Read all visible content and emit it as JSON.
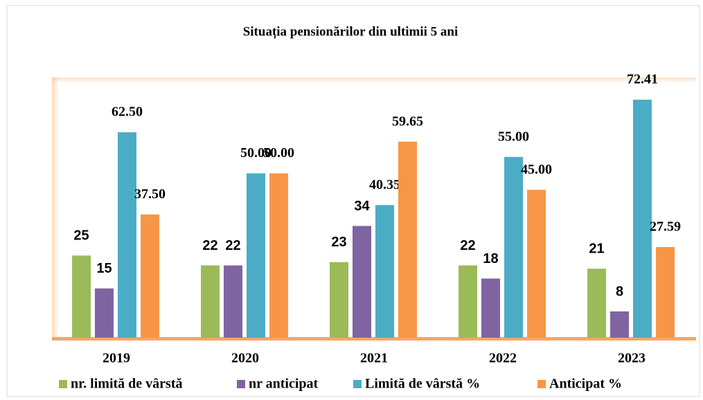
{
  "chart_data": {
    "type": "bar",
    "title": "Situația pensionărilor din ultimii 5 ani",
    "categories": [
      "2019",
      "2020",
      "2021",
      "2022",
      "2023"
    ],
    "ylim": [
      0,
      80
    ],
    "legend": "bottom",
    "series": [
      {
        "name": "nr. limită de vârstă",
        "color": "#9bbb59",
        "values": [
          25,
          22,
          23,
          22,
          21
        ]
      },
      {
        "name": "nr anticipat",
        "color": "#8064a2",
        "values": [
          15,
          22,
          34,
          18,
          8
        ]
      },
      {
        "name": "Limită de vârstă %",
        "color": "#4bacc6",
        "values": [
          62.5,
          50,
          40.35,
          55,
          72.41
        ],
        "value_labels": [
          "62.50",
          "50.00",
          "40.35",
          "55.00",
          "72.41"
        ]
      },
      {
        "name": "Anticipat %",
        "color": "#f79646",
        "values": [
          37.5,
          50,
          59.65,
          45,
          27.59
        ],
        "value_labels": [
          "37.50",
          "50.00",
          "59.65",
          "45.00",
          "27.59"
        ]
      }
    ]
  }
}
